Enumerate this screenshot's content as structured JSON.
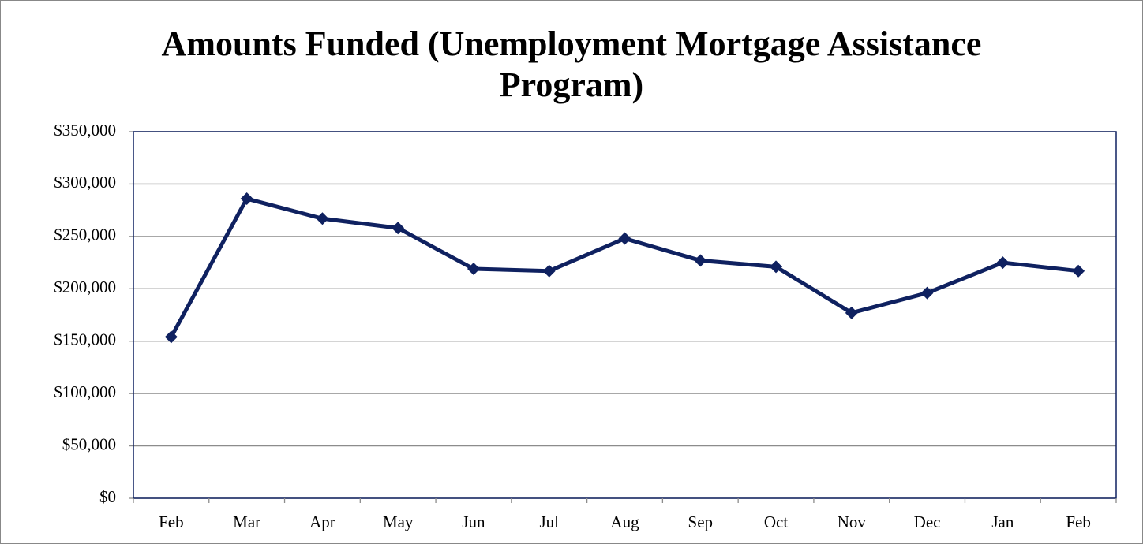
{
  "chart_data": {
    "type": "line",
    "title": "Amounts Funded (Unemployment Mortgage Assistance Program)",
    "categories": [
      "Feb",
      "Mar",
      "Apr",
      "May",
      "Jun",
      "Jul",
      "Aug",
      "Sep",
      "Oct",
      "Nov",
      "Dec",
      "Jan",
      "Feb"
    ],
    "series": [
      {
        "name": "Amounts Funded",
        "color": "#0f2160",
        "values": [
          154000,
          286000,
          267000,
          258000,
          219000,
          217000,
          248000,
          227000,
          221000,
          177000,
          196000,
          225000,
          217000
        ]
      }
    ],
    "ylim": [
      0,
      350000
    ],
    "yticks": [
      {
        "value": 0,
        "label": "$0"
      },
      {
        "value": 50000,
        "label": "$50,000"
      },
      {
        "value": 100000,
        "label": "$100,000"
      },
      {
        "value": 150000,
        "label": "$150,000"
      },
      {
        "value": 200000,
        "label": "$200,000"
      },
      {
        "value": 250000,
        "label": "$250,000"
      },
      {
        "value": 300000,
        "label": "$300,000"
      },
      {
        "value": 350000,
        "label": "$350,000"
      }
    ],
    "grid": true
  }
}
